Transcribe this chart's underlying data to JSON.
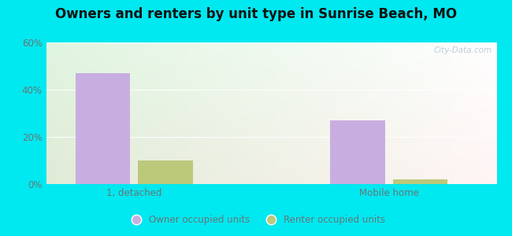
{
  "title": "Owners and renters by unit type in Sunrise Beach, MO",
  "categories": [
    "1, detached",
    "Mobile home"
  ],
  "owner_values": [
    47,
    27
  ],
  "renter_values": [
    10,
    2
  ],
  "owner_color": "#c8aee0",
  "renter_color": "#bcc87a",
  "ylim": [
    0,
    60
  ],
  "yticks": [
    0,
    20,
    40,
    60
  ],
  "ytick_labels": [
    "0%",
    "20%",
    "40%",
    "60%"
  ],
  "background_outer": "#00e8f0",
  "bar_width": 0.28,
  "group_positions": [
    0.55,
    1.85
  ],
  "xlim": [
    0.1,
    2.4
  ],
  "legend_labels": [
    "Owner occupied units",
    "Renter occupied units"
  ],
  "watermark": "City-Data.com",
  "grid_color": "#ddeecc",
  "tick_color": "#667777",
  "title_fontsize": 12
}
